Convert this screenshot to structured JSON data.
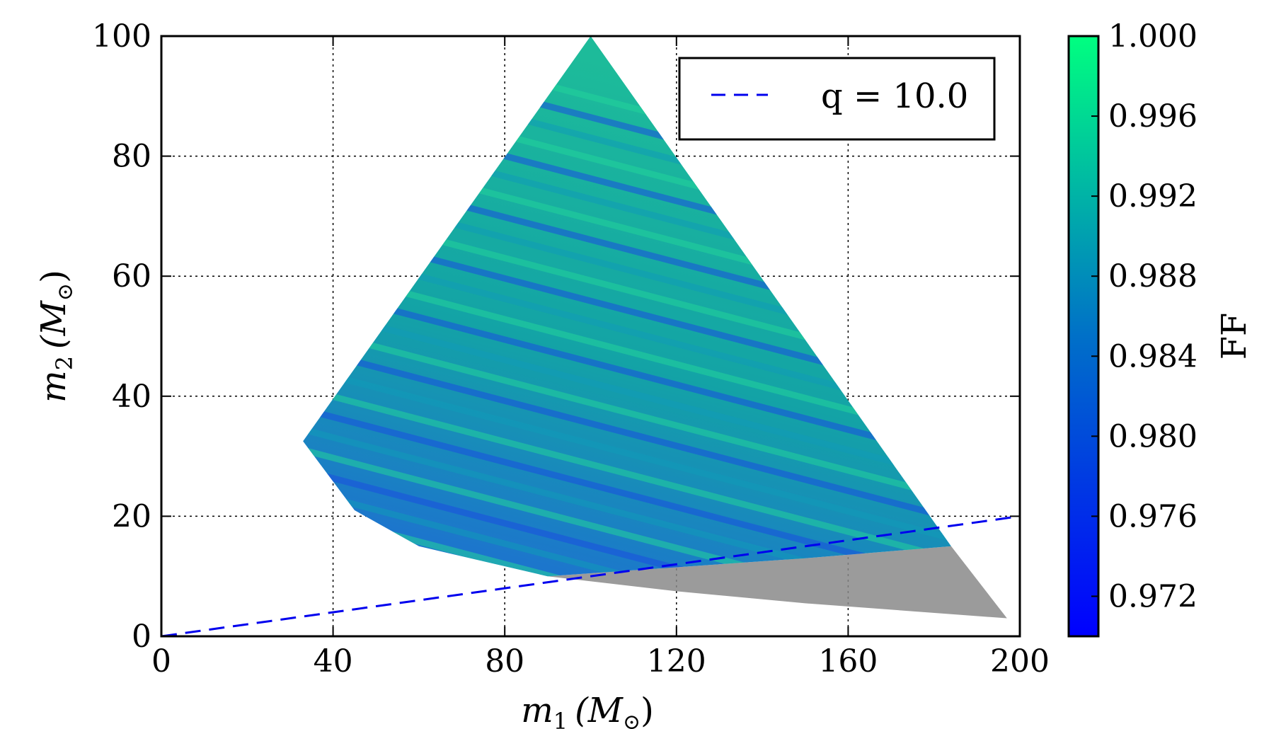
{
  "chart_data": {
    "type": "scatter",
    "title": "",
    "xlabel": {
      "base": "m",
      "sub": "1",
      "unit": "(M",
      "sun": "⊙",
      "close": ")"
    },
    "ylabel": {
      "base": "m",
      "sub": "2",
      "unit": "(M",
      "sun": "⊙",
      "close": ")"
    },
    "xlim": [
      0,
      200
    ],
    "ylim": [
      0,
      100
    ],
    "xticks": [
      0,
      40,
      80,
      120,
      160,
      200
    ],
    "xtick_labels": [
      "0",
      "40",
      "80",
      "120",
      "160",
      "200"
    ],
    "yticks": [
      0,
      20,
      40,
      60,
      80,
      100
    ],
    "ytick_labels": [
      "0",
      "20",
      "40",
      "60",
      "80",
      "100"
    ],
    "grid": true,
    "region": {
      "description_points": [
        [
          33,
          32.5
        ],
        [
          100,
          100
        ],
        [
          185,
          15
        ],
        [
          197,
          3
        ],
        [
          150,
          5.5
        ],
        [
          120,
          7.5
        ],
        [
          90,
          10
        ],
        [
          60,
          15
        ],
        [
          45,
          21
        ],
        [
          33,
          32.5
        ]
      ],
      "colored_region": [
        [
          33,
          32.5
        ],
        [
          100,
          100
        ],
        [
          184,
          15
        ],
        [
          150,
          13
        ],
        [
          120,
          11.5
        ],
        [
          90,
          10
        ],
        [
          60,
          15
        ],
        [
          45,
          21
        ],
        [
          33,
          32.5
        ]
      ],
      "gray_region": [
        [
          90,
          10
        ],
        [
          150,
          13
        ],
        [
          184,
          15
        ],
        [
          197,
          3
        ],
        [
          150,
          5.5
        ],
        [
          120,
          7.5
        ],
        [
          90,
          10
        ]
      ]
    },
    "series": [
      {
        "name": "q = 10.0",
        "type": "line",
        "style": "dashed",
        "color": "#0000ee",
        "x": [
          0,
          200
        ],
        "y": [
          0,
          20
        ]
      }
    ],
    "colorbar": {
      "label": "FF",
      "range": [
        0.97,
        1.0
      ],
      "ticks": [
        1.0,
        0.996,
        0.992,
        0.988,
        0.984,
        0.98,
        0.976,
        0.972
      ],
      "tick_labels": [
        "1.000",
        "0.996",
        "0.992",
        "0.988",
        "0.984",
        "0.980",
        "0.976",
        "0.972"
      ],
      "colors": {
        "low": "#0000ff",
        "high": "#00ff80"
      }
    },
    "legend": {
      "entries": [
        "q = 10.0"
      ],
      "placement": "top-right"
    }
  }
}
